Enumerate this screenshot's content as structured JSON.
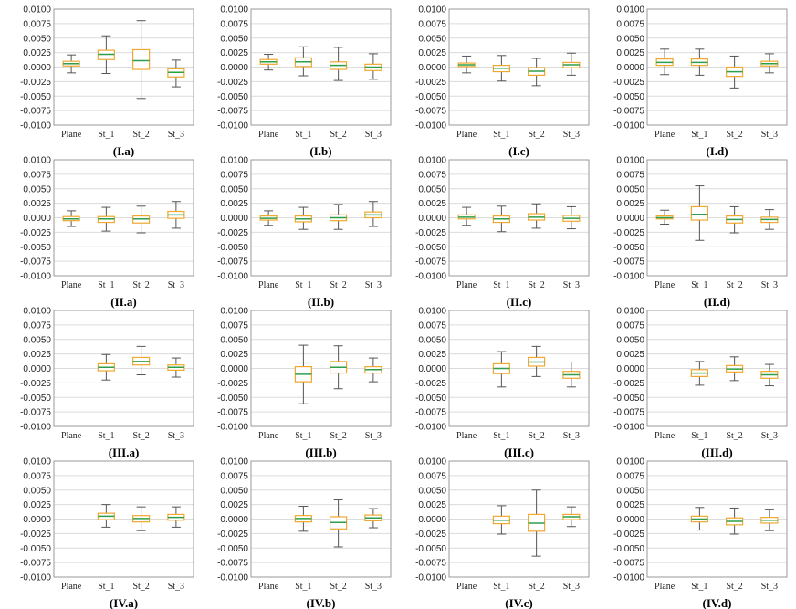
{
  "chart_data": {
    "type": "boxplot",
    "layout": {
      "rows": 4,
      "cols": 4
    },
    "categories": [
      "Plane",
      "St_1",
      "St_2",
      "St_3"
    ],
    "ylim": [
      -0.01,
      0.01
    ],
    "yticks": [
      "0.0100",
      "0.0075",
      "0.0050",
      "0.0025",
      "0.0000",
      "-0.0025",
      "-0.0050",
      "-0.0075",
      "-0.0100"
    ],
    "ytick_values": [
      0.01,
      0.0075,
      0.005,
      0.0025,
      0,
      -0.0025,
      -0.005,
      -0.0075,
      -0.01
    ],
    "colors": {
      "box": "#f0a830",
      "median": "#2e9e4a",
      "whisker": "#555555",
      "frame": "#999999"
    },
    "panels": [
      {
        "caption": "(I.a)",
        "boxes": [
          {
            "min": -0.001,
            "q1": 0.0002,
            "median": 0.0006,
            "q3": 0.001,
            "max": 0.0021
          },
          {
            "min": -0.0011,
            "q1": 0.0013,
            "median": 0.0022,
            "q3": 0.0029,
            "max": 0.0054
          },
          {
            "min": -0.0054,
            "q1": -0.0004,
            "median": 0.0011,
            "q3": 0.003,
            "max": 0.008
          },
          {
            "min": -0.0034,
            "q1": -0.0017,
            "median": -0.0009,
            "q3": -0.0003,
            "max": 0.0012
          }
        ]
      },
      {
        "caption": "(I.b)",
        "boxes": [
          {
            "min": -0.0005,
            "q1": 0.0005,
            "median": 0.0009,
            "q3": 0.0013,
            "max": 0.0022
          },
          {
            "min": -0.0015,
            "q1": 0.0001,
            "median": 0.0009,
            "q3": 0.0016,
            "max": 0.0035
          },
          {
            "min": -0.0023,
            "q1": -0.0004,
            "median": 0.0003,
            "q3": 0.0009,
            "max": 0.0034
          },
          {
            "min": -0.0021,
            "q1": -0.0006,
            "median": 0,
            "q3": 0.0005,
            "max": 0.0023
          }
        ]
      },
      {
        "caption": "(I.c)",
        "boxes": [
          {
            "min": -0.001,
            "q1": 0.0001,
            "median": 0.0004,
            "q3": 0.0007,
            "max": 0.0019
          },
          {
            "min": -0.0024,
            "q1": -0.0008,
            "median": -0.0002,
            "q3": 0.0003,
            "max": 0.002
          },
          {
            "min": -0.0032,
            "q1": -0.0014,
            "median": -0.0007,
            "q3": -0.0001,
            "max": 0.0015
          },
          {
            "min": -0.0014,
            "q1": -0.0001,
            "median": 0.0004,
            "q3": 0.0008,
            "max": 0.0024
          }
        ]
      },
      {
        "caption": "(I.d)",
        "boxes": [
          {
            "min": -0.0013,
            "q1": 0.0003,
            "median": 0.0008,
            "q3": 0.0014,
            "max": 0.0031
          },
          {
            "min": -0.0014,
            "q1": 0.0003,
            "median": 0.0008,
            "q3": 0.0014,
            "max": 0.0031
          },
          {
            "min": -0.0036,
            "q1": -0.0016,
            "median": -0.0008,
            "q3": 0,
            "max": 0.0019
          },
          {
            "min": -0.001,
            "q1": 0.0002,
            "median": 0.0006,
            "q3": 0.001,
            "max": 0.0023
          }
        ]
      },
      {
        "caption": "(II.a)",
        "boxes": [
          {
            "min": -0.0015,
            "q1": -0.0005,
            "median": -0.0002,
            "q3": 0.0002,
            "max": 0.0012
          },
          {
            "min": -0.0023,
            "q1": -0.0008,
            "median": -0.0002,
            "q3": 0.0002,
            "max": 0.0018
          },
          {
            "min": -0.0026,
            "q1": -0.0009,
            "median": -0.0002,
            "q3": 0.0003,
            "max": 0.002
          },
          {
            "min": -0.0018,
            "q1": -0.0001,
            "median": 0.0005,
            "q3": 0.0011,
            "max": 0.0028
          }
        ]
      },
      {
        "caption": "(II.b)",
        "boxes": [
          {
            "min": -0.0013,
            "q1": -0.0004,
            "median": -0.0001,
            "q3": 0.0003,
            "max": 0.0012
          },
          {
            "min": -0.002,
            "q1": -0.0007,
            "median": -0.0002,
            "q3": 0.0003,
            "max": 0.0018
          },
          {
            "min": -0.002,
            "q1": -0.0005,
            "median": 0,
            "q3": 0.0005,
            "max": 0.0023
          },
          {
            "min": -0.0015,
            "q1": 0,
            "median": 0.0005,
            "q3": 0.001,
            "max": 0.0028
          }
        ]
      },
      {
        "caption": "(II.c)",
        "boxes": [
          {
            "min": -0.0013,
            "q1": -0.0002,
            "median": 0.0001,
            "q3": 0.0005,
            "max": 0.0018
          },
          {
            "min": -0.0024,
            "q1": -0.0008,
            "median": -0.0002,
            "q3": 0.0003,
            "max": 0.002
          },
          {
            "min": -0.0018,
            "q1": -0.0004,
            "median": 0.0001,
            "q3": 0.0007,
            "max": 0.0024
          },
          {
            "min": -0.0019,
            "q1": -0.0006,
            "median": -0.0001,
            "q3": 0.0004,
            "max": 0.0019
          }
        ]
      },
      {
        "caption": "(II.d)",
        "boxes": [
          {
            "min": -0.0011,
            "q1": -0.0002,
            "median": 0,
            "q3": 0.0003,
            "max": 0.0013
          },
          {
            "min": -0.0039,
            "q1": -0.0004,
            "median": 0.0006,
            "q3": 0.0019,
            "max": 0.0055
          },
          {
            "min": -0.0026,
            "q1": -0.0009,
            "median": -0.0003,
            "q3": 0.0003,
            "max": 0.0019
          },
          {
            "min": -0.002,
            "q1": -0.0008,
            "median": -0.0003,
            "q3": 0.0001,
            "max": 0.0014
          }
        ]
      },
      {
        "caption": "(III.a)",
        "boxes": [
          null,
          {
            "min": -0.002,
            "q1": -0.0004,
            "median": 0.0002,
            "q3": 0.0008,
            "max": 0.0024
          },
          {
            "min": -0.0011,
            "q1": 0.0006,
            "median": 0.0012,
            "q3": 0.0019,
            "max": 0.0038
          },
          {
            "min": -0.0015,
            "q1": -0.0003,
            "median": 0.0002,
            "q3": 0.0006,
            "max": 0.0018
          }
        ]
      },
      {
        "caption": "(III.b)",
        "boxes": [
          null,
          {
            "min": -0.0061,
            "q1": -0.0023,
            "median": -0.001,
            "q3": 0.0003,
            "max": 0.004
          },
          {
            "min": -0.0035,
            "q1": -0.0008,
            "median": 0.0002,
            "q3": 0.0012,
            "max": 0.0039
          },
          {
            "min": -0.0023,
            "q1": -0.0008,
            "median": -0.0002,
            "q3": 0.0003,
            "max": 0.0018
          }
        ]
      },
      {
        "caption": "(III.c)",
        "boxes": [
          null,
          {
            "min": -0.0032,
            "q1": -0.0009,
            "median": 0,
            "q3": 0.0008,
            "max": 0.0029
          },
          {
            "min": -0.0014,
            "q1": 0.0004,
            "median": 0.0011,
            "q3": 0.0019,
            "max": 0.0038
          },
          {
            "min": -0.0032,
            "q1": -0.0017,
            "median": -0.0011,
            "q3": -0.0005,
            "max": 0.0011
          }
        ]
      },
      {
        "caption": "(III.d)",
        "boxes": [
          null,
          {
            "min": -0.0029,
            "q1": -0.0014,
            "median": -0.0008,
            "q3": -0.0002,
            "max": 0.0012
          },
          {
            "min": -0.0021,
            "q1": -0.0006,
            "median": -0.0001,
            "q3": 0.0005,
            "max": 0.002
          },
          {
            "min": -0.003,
            "q1": -0.0017,
            "median": -0.0011,
            "q3": -0.0005,
            "max": 0.0007
          }
        ]
      },
      {
        "caption": "(IV.a)",
        "boxes": [
          null,
          {
            "min": -0.0014,
            "q1": -0.0001,
            "median": 0.0005,
            "q3": 0.001,
            "max": 0.0025
          },
          {
            "min": -0.002,
            "q1": -0.0005,
            "median": 0.0001,
            "q3": 0.0006,
            "max": 0.0021
          },
          {
            "min": -0.0014,
            "q1": -0.0002,
            "median": 0.0003,
            "q3": 0.0008,
            "max": 0.0021
          }
        ]
      },
      {
        "caption": "(IV.b)",
        "boxes": [
          null,
          {
            "min": -0.0021,
            "q1": -0.0005,
            "median": 0.0001,
            "q3": 0.0006,
            "max": 0.0022
          },
          {
            "min": -0.0048,
            "q1": -0.0017,
            "median": -0.0006,
            "q3": 0.0004,
            "max": 0.0033
          },
          {
            "min": -0.0015,
            "q1": -0.0003,
            "median": 0.0002,
            "q3": 0.0007,
            "max": 0.0018
          }
        ]
      },
      {
        "caption": "(IV.c)",
        "boxes": [
          null,
          {
            "min": -0.0026,
            "q1": -0.0008,
            "median": -0.0002,
            "q3": 0.0005,
            "max": 0.0023
          },
          {
            "min": -0.0064,
            "q1": -0.0021,
            "median": -0.0007,
            "q3": 0.0008,
            "max": 0.005
          },
          {
            "min": -0.0013,
            "q1": -0.0001,
            "median": 0.0004,
            "q3": 0.0008,
            "max": 0.0021
          }
        ]
      },
      {
        "caption": "(IV.d)",
        "boxes": [
          null,
          {
            "min": -0.0019,
            "q1": -0.0005,
            "median": 0,
            "q3": 0.0005,
            "max": 0.002
          },
          {
            "min": -0.0026,
            "q1": -0.001,
            "median": -0.0004,
            "q3": 0.0002,
            "max": 0.0019
          },
          {
            "min": -0.002,
            "q1": -0.0007,
            "median": -0.0002,
            "q3": 0.0003,
            "max": 0.0016
          }
        ]
      }
    ]
  }
}
